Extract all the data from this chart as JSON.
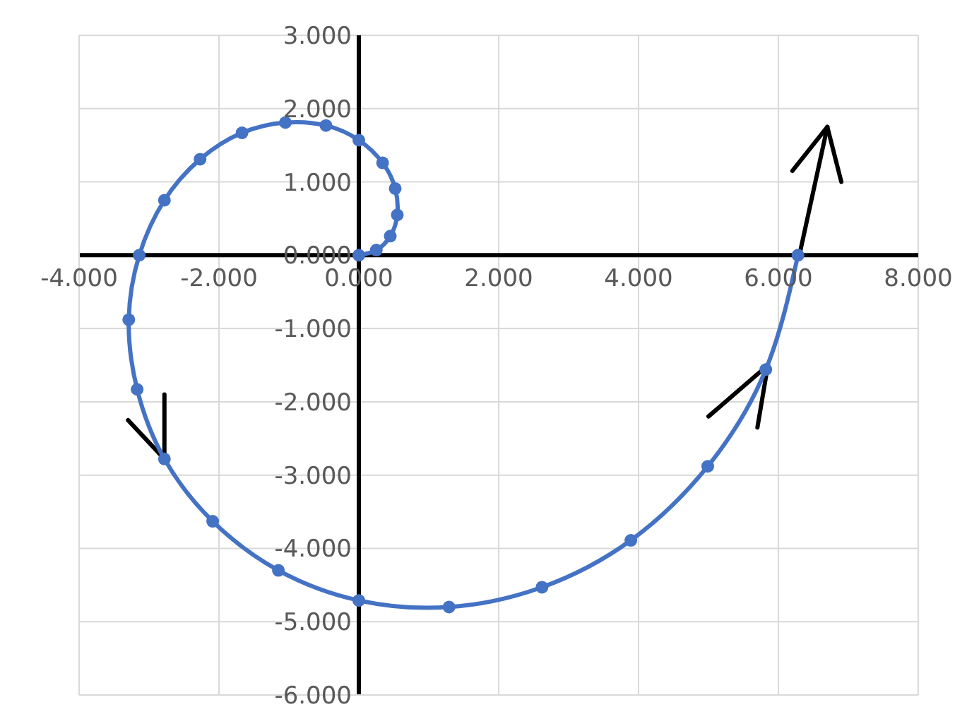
{
  "chart_data": {
    "type": "line",
    "x": [
      0,
      0.25,
      0.45,
      0.55,
      0.52,
      0.34,
      0,
      -0.47,
      -1.05,
      -1.67,
      -2.27,
      -2.78,
      -3.14,
      -3.29,
      -3.17,
      -2.78,
      -2.09,
      -1.15,
      0,
      1.29,
      2.62,
      3.89,
      4.99,
      5.82,
      6.28
    ],
    "series": [
      {
        "color": "#4472c4",
        "values": [
          0,
          0.07,
          0.26,
          0.55,
          0.91,
          1.26,
          1.57,
          1.77,
          1.81,
          1.67,
          1.31,
          0.75,
          0,
          -0.88,
          -1.83,
          -2.78,
          -3.63,
          -4.3,
          -4.71,
          -4.8,
          -4.53,
          -3.89,
          -2.88,
          -1.56,
          0
        ]
      }
    ],
    "marker": "circle",
    "line_style": "solid",
    "grid": true,
    "legend": false,
    "xlim": [
      -4,
      8
    ],
    "xticks": [
      {
        "value": -4,
        "label": "-4.000"
      },
      {
        "value": -2,
        "label": "-2.000"
      },
      {
        "value": 0,
        "label": "0.000"
      },
      {
        "value": 2,
        "label": "2.000"
      },
      {
        "value": 4,
        "label": "4.000"
      },
      {
        "value": 6,
        "label": "6.000"
      },
      {
        "value": 8,
        "label": "8.000"
      }
    ],
    "ylim": [
      -6,
      3
    ],
    "yticks": [
      {
        "value": -6,
        "label": "-6.000"
      },
      {
        "value": -5,
        "label": "-5.000"
      },
      {
        "value": -4,
        "label": "-4.000"
      },
      {
        "value": -3,
        "label": "-3.000"
      },
      {
        "value": -2,
        "label": "-2.000"
      },
      {
        "value": -1,
        "label": "-1.000"
      },
      {
        "value": 0,
        "label": "0.000"
      },
      {
        "value": 1,
        "label": "1.000"
      },
      {
        "value": 2,
        "label": "2.000"
      },
      {
        "value": 3,
        "label": "3.000"
      }
    ]
  }
}
